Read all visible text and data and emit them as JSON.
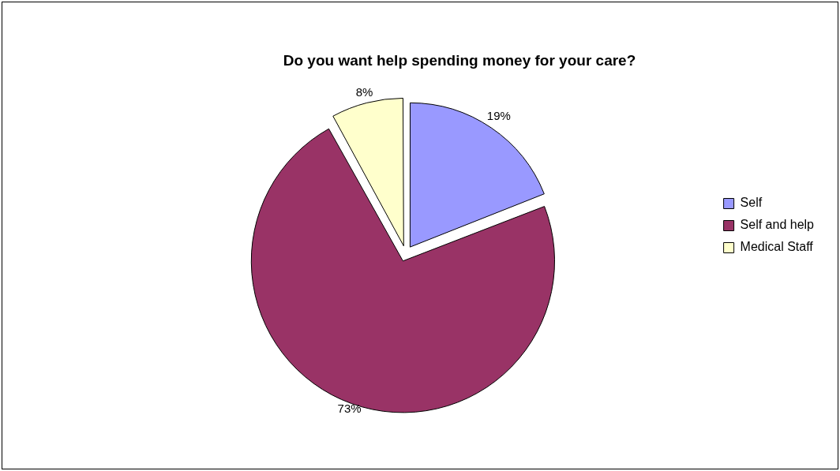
{
  "chart_data": {
    "type": "pie",
    "title": "Do you want help spending money for your care?",
    "categories": [
      "Self",
      "Self and help",
      "Medical Staff"
    ],
    "values": [
      19,
      73,
      8
    ],
    "value_labels": [
      "19%",
      "73%",
      "8%"
    ],
    "colors": [
      "#9999ff",
      "#993366",
      "#ffffcc"
    ],
    "legend": "right"
  }
}
